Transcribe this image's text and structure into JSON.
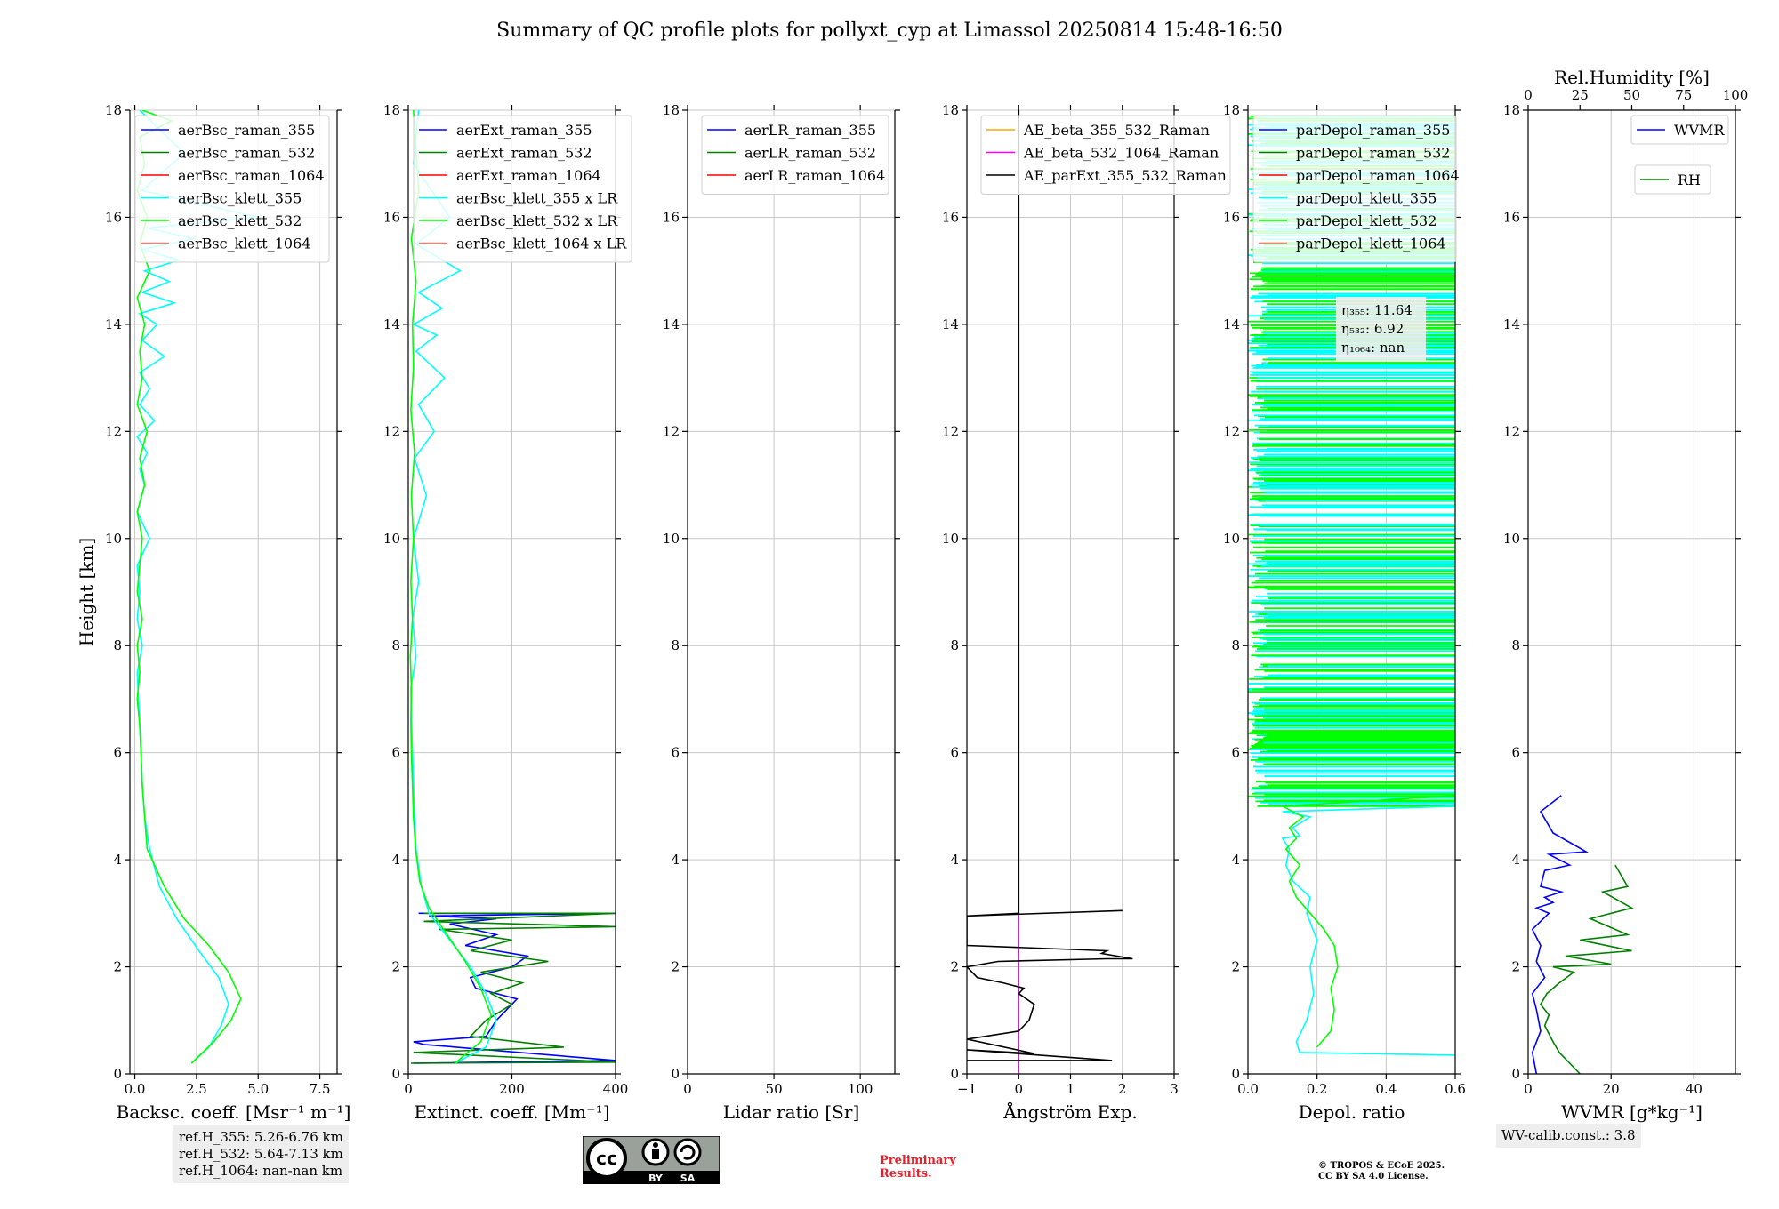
{
  "figure": {
    "title": "Summary of QC profile plots for pollyxt_cyp at Limassol 20250814 15:48-16:50",
    "ylabel": "Height [km]",
    "ref_heights": [
      "ref.H_355: 5.26-6.76 km",
      "ref.H_532: 5.64-7.13 km",
      "ref.H_1064: nan-nan km"
    ],
    "wv_calib": "WV-calib.const.: 3.8",
    "preliminary": "Preliminary\nResults.",
    "copyright": "© TROPOS & ECoE 2025.\nCC BY SA 4.0 License.",
    "license_badge": {
      "icon": "creative-commons-by-sa-icon",
      "by": "BY",
      "sa": "SA"
    }
  },
  "chart_data": [
    {
      "type": "line",
      "xlabel": "Backsc. coeff. [Msr⁻¹ m⁻¹]",
      "xlim": [
        -0.2,
        8.2
      ],
      "ylim": [
        0,
        18
      ],
      "xticks": [
        0,
        2.5,
        5,
        7.5
      ],
      "xtick_labels": [
        "0.0",
        "2.5",
        "5.0",
        "7.5"
      ],
      "yticks": [
        0,
        2,
        4,
        6,
        8,
        10,
        12,
        14,
        16,
        18
      ],
      "grid": true,
      "legend_position": "top-right",
      "series": [
        {
          "name": "aerBsc_raman_355",
          "color": "#0000ff",
          "x": [],
          "y": []
        },
        {
          "name": "aerBsc_raman_532",
          "color": "#008000",
          "x": [],
          "y": []
        },
        {
          "name": "aerBsc_raman_1064",
          "color": "#ff0000",
          "x": [],
          "y": []
        },
        {
          "name": "aerBsc_klett_355",
          "color": "#00ffff",
          "x": [
            2.3,
            3.0,
            3.5,
            3.8,
            3.4,
            2.6,
            1.7,
            1.0,
            0.6,
            0.4,
            0.3,
            0.25,
            0.2,
            0.15,
            0.1,
            0.3,
            0.1,
            0.2,
            0.1,
            0.6,
            0.1,
            0.4,
            0.2,
            0.5,
            0.1,
            0.8,
            0.2,
            0.6,
            0.2,
            1.2,
            0.3,
            0.9,
            0.2,
            1.6,
            0.3,
            1.4,
            0.4,
            1.8,
            0.3,
            2.4,
            0.5,
            5.0,
            0.3,
            2.0,
            0.2
          ],
          "y": [
            0.2,
            0.5,
            0.9,
            1.3,
            1.8,
            2.3,
            2.9,
            3.5,
            4.2,
            4.8,
            5.4,
            6.0,
            6.5,
            7.0,
            7.5,
            8.0,
            8.5,
            9.0,
            9.5,
            10.0,
            10.5,
            11.0,
            11.3,
            11.6,
            11.9,
            12.2,
            12.5,
            12.8,
            13.1,
            13.4,
            13.7,
            14.0,
            14.2,
            14.4,
            14.6,
            14.8,
            15.0,
            15.2,
            15.4,
            15.6,
            15.8,
            16.0,
            16.5,
            17.2,
            18.0
          ]
        },
        {
          "name": "aerBsc_klett_532",
          "color": "#00ff00",
          "x": [
            2.3,
            3.2,
            3.9,
            4.3,
            3.8,
            3.0,
            2.0,
            1.2,
            0.5,
            0.4,
            0.3,
            0.25,
            0.2,
            0.1,
            0.2,
            0.1,
            0.3,
            0.1,
            0.2,
            0.3,
            0.1,
            0.4,
            0.2,
            0.5,
            0.1,
            0.3,
            0.2,
            0.4,
            0.1,
            0.6,
            0.2,
            0.5,
            0.1,
            0.4,
            0.2,
            1.5,
            0.3
          ],
          "y": [
            0.2,
            0.6,
            1.0,
            1.4,
            1.9,
            2.4,
            2.9,
            3.5,
            4.2,
            4.8,
            5.4,
            6.0,
            6.5,
            7.0,
            7.5,
            8.0,
            8.5,
            9.0,
            9.5,
            10.0,
            10.5,
            11.0,
            11.5,
            12.0,
            12.5,
            13.0,
            13.5,
            14.0,
            14.5,
            15.0,
            15.5,
            16.0,
            16.5,
            17.0,
            17.5,
            17.8,
            18.0
          ]
        },
        {
          "name": "aerBsc_klett_1064",
          "color": "#fa8072",
          "x": [],
          "y": []
        }
      ]
    },
    {
      "type": "line",
      "xlabel": "Extinct. coeff. [Mm⁻¹]",
      "xlim": [
        0,
        400
      ],
      "ylim": [
        0,
        18
      ],
      "xticks": [
        0,
        200,
        400
      ],
      "xtick_labels": [
        "0",
        "200",
        "400"
      ],
      "yticks": [
        0,
        2,
        4,
        6,
        8,
        10,
        12,
        14,
        16,
        18
      ],
      "grid": true,
      "legend_position": "top-right",
      "hidden_legend_text": [
        "0",
        "400",
        "1064 x LR"
      ],
      "series": [
        {
          "name": "aerExt_raman_355",
          "color": "#0000ff",
          "x": [
            10,
            400,
            30,
            10,
            150,
            170,
            190,
            210,
            130,
            120,
            200,
            230,
            110,
            170,
            80,
            170,
            40,
            400,
            20
          ],
          "y": [
            0.2,
            0.25,
            0.55,
            0.6,
            0.7,
            1.0,
            1.2,
            1.4,
            1.6,
            1.8,
            2.0,
            2.2,
            2.4,
            2.6,
            2.8,
            2.9,
            2.95,
            3.0,
            3.0
          ]
        },
        {
          "name": "aerExt_raman_532",
          "color": "#008000",
          "x": [
            5,
            400,
            10,
            300,
            120,
            150,
            200,
            160,
            220,
            140,
            270,
            120,
            200,
            60,
            400,
            30,
            400,
            30
          ],
          "y": [
            0.2,
            0.22,
            0.4,
            0.5,
            0.7,
            1.0,
            1.3,
            1.5,
            1.7,
            1.9,
            2.1,
            2.3,
            2.5,
            2.7,
            2.75,
            2.85,
            3.0,
            3.0
          ]
        },
        {
          "name": "aerExt_raman_1064",
          "color": "#ff0000",
          "x": [],
          "y": []
        },
        {
          "name": "aerBsc_klett_355 x LR",
          "color": "#00ffff",
          "x": [
            90,
            150,
            170,
            150,
            120,
            80,
            40,
            25,
            15,
            12,
            10,
            8,
            6,
            5,
            15,
            8,
            20,
            10,
            35,
            12,
            50,
            20,
            70,
            15,
            55,
            10,
            65,
            20,
            100,
            15,
            80,
            10,
            20
          ],
          "y": [
            0.2,
            0.5,
            1.0,
            1.5,
            2.0,
            2.5,
            3.0,
            3.5,
            4.2,
            4.8,
            5.4,
            6.0,
            6.6,
            7.2,
            7.8,
            8.5,
            9.2,
            10.0,
            10.8,
            11.5,
            12.0,
            12.5,
            13.0,
            13.5,
            13.8,
            14.0,
            14.3,
            14.6,
            15.0,
            15.5,
            16.0,
            17.0,
            18.0
          ]
        },
        {
          "name": "aerBsc_klett_532 x LR",
          "color": "#00ff00",
          "x": [
            90,
            140,
            160,
            140,
            110,
            75,
            40,
            22,
            14,
            10,
            8,
            6,
            5,
            6,
            4,
            8,
            5,
            10,
            6,
            12,
            5,
            10,
            8,
            15,
            6,
            20,
            10
          ],
          "y": [
            0.2,
            0.6,
            1.1,
            1.6,
            2.1,
            2.6,
            3.1,
            3.6,
            4.2,
            4.8,
            5.4,
            6.0,
            6.6,
            7.2,
            7.8,
            8.5,
            9.2,
            10.0,
            10.8,
            11.6,
            12.4,
            13.2,
            14.0,
            14.8,
            15.6,
            16.5,
            18.0
          ]
        },
        {
          "name": "aerBsc_klett_1064 x LR",
          "color": "#fa8072",
          "x": [],
          "y": []
        }
      ]
    },
    {
      "type": "line",
      "xlabel": "Lidar ratio [Sr]",
      "xlim": [
        0,
        120
      ],
      "ylim": [
        0,
        18
      ],
      "xticks": [
        0,
        50,
        100
      ],
      "xtick_labels": [
        "0",
        "50",
        "100"
      ],
      "yticks": [
        0,
        2,
        4,
        6,
        8,
        10,
        12,
        14,
        16,
        18
      ],
      "grid": true,
      "legend_position": "top-right",
      "series": [
        {
          "name": "aerLR_raman_355",
          "color": "#0000ff",
          "x": [],
          "y": []
        },
        {
          "name": "aerLR_raman_532",
          "color": "#008000",
          "x": [],
          "y": []
        },
        {
          "name": "aerLR_raman_1064",
          "color": "#ff0000",
          "x": [],
          "y": []
        }
      ]
    },
    {
      "type": "line",
      "xlabel": "Ångström Exp.",
      "xlim": [
        -1,
        3
      ],
      "ylim": [
        0,
        18
      ],
      "xticks": [
        -1,
        0,
        1,
        2,
        3
      ],
      "xtick_labels": [
        "−1",
        "0",
        "1",
        "2",
        "3"
      ],
      "yticks": [
        0,
        2,
        4,
        6,
        8,
        10,
        12,
        14,
        16,
        18
      ],
      "grid": true,
      "legend_position": "top-right",
      "series": [
        {
          "name": "AE_beta_355_532_Raman",
          "color": "#ffa500",
          "x": [],
          "y": []
        },
        {
          "name": "AE_beta_532_1064_Raman",
          "color": "#ff00ff",
          "x": [
            0,
            0
          ],
          "y": [
            0,
            3.0
          ]
        },
        {
          "name": "AE_parExt_355_532_Raman",
          "color": "#000000",
          "x": [
            -1,
            1.8,
            -1,
            0.3,
            -1,
            0.0,
            0.2,
            0.3,
            0.0,
            0.1,
            -0.3,
            -0.8,
            -1,
            -0.4,
            1.7,
            2.2,
            1.6,
            1.7,
            -1,
            -1,
            2.0,
            -1,
            0,
            0
          ],
          "y": [
            0.25,
            0.25,
            0.45,
            0.38,
            0.65,
            0.8,
            1.0,
            1.3,
            1.5,
            1.6,
            1.7,
            1.8,
            2.0,
            2.1,
            2.15,
            2.15,
            2.25,
            2.3,
            2.4,
            2.95,
            3.05,
            2.95,
            3.0,
            18.0
          ]
        }
      ]
    },
    {
      "type": "line",
      "xlabel": "Depol. ratio",
      "xlim": [
        0,
        0.6
      ],
      "ylim": [
        0,
        18
      ],
      "xticks": [
        0,
        0.2,
        0.4,
        0.6
      ],
      "xtick_labels": [
        "0.0",
        "0.2",
        "0.4",
        "0.6"
      ],
      "yticks": [
        0,
        2,
        4,
        6,
        8,
        10,
        12,
        14,
        16,
        18
      ],
      "grid": true,
      "legend_position": "top-right",
      "annotation": [
        "η₃₅₅: 11.64",
        "η₅₃₂: 6.92",
        "η₁₀₆₄: nan"
      ],
      "series": [
        {
          "name": "parDepol_raman_355",
          "color": "#0000ff",
          "x": [],
          "y": []
        },
        {
          "name": "parDepol_raman_532",
          "color": "#008000",
          "x": [],
          "y": []
        },
        {
          "name": "parDepol_raman_1064",
          "color": "#ff0000",
          "x": [],
          "y": []
        },
        {
          "name": "parDepol_klett_355",
          "color": "#00ffff",
          "x": [
            0.6,
            0.15,
            0.14,
            0.17,
            0.19,
            0.18,
            0.2,
            0.17,
            0.18,
            0.13,
            0.11,
            0.12,
            0.1,
            0.15,
            0.13,
            0.18,
            0.1,
            0.6
          ],
          "y": [
            0.35,
            0.4,
            0.6,
            1.0,
            1.5,
            2.0,
            2.5,
            3.0,
            3.3,
            3.6,
            3.9,
            4.2,
            4.4,
            4.45,
            4.6,
            4.8,
            4.9,
            5.0
          ]
        },
        {
          "name": "parDepol_klett_532",
          "color": "#00ff00",
          "x": [
            0.2,
            0.24,
            0.25,
            0.24,
            0.26,
            0.25,
            0.22,
            0.18,
            0.14,
            0.12,
            0.15,
            0.11,
            0.14,
            0.12,
            0.16,
            0.1,
            0.6
          ],
          "y": [
            0.5,
            0.8,
            1.2,
            1.6,
            2.0,
            2.4,
            2.7,
            3.0,
            3.3,
            3.6,
            3.9,
            4.2,
            4.4,
            4.6,
            4.8,
            5.0,
            5.2
          ]
        },
        {
          "name": "parDepol_klett_1064",
          "color": "#fa8072",
          "x": [],
          "y": []
        }
      ],
      "noise_band": {
        "ymin": 5.0,
        "ymax": 18.0,
        "xmax": 0.6,
        "note": "dense noisy horizontal lines of parDepol_klett_355 and parDepol_klett_532 above 5 km"
      }
    },
    {
      "type": "line",
      "xlabel": "WVMR [g*kg⁻¹]",
      "x2label": "Rel.Humidity [%]",
      "xlim": [
        0,
        50
      ],
      "x2lim": [
        0,
        100
      ],
      "ylim": [
        0,
        18
      ],
      "xticks": [
        0,
        20,
        40
      ],
      "xtick_labels": [
        "0",
        "20",
        "40"
      ],
      "x2ticks": [
        0,
        25,
        50,
        75,
        100
      ],
      "x2tick_labels": [
        "0",
        "25",
        "50",
        "75",
        "100"
      ],
      "yticks": [
        0,
        2,
        4,
        6,
        8,
        10,
        12,
        14,
        16,
        18
      ],
      "grid": true,
      "legend_position": "top-right",
      "series": [
        {
          "name": "WVMR",
          "color": "#0000ff",
          "x": [
            2,
            1,
            3,
            2,
            1,
            4,
            2,
            3,
            1,
            5,
            2,
            6,
            4,
            8,
            3,
            4,
            10,
            5,
            14,
            6,
            3,
            8
          ],
          "y": [
            0.0,
            0.4,
            0.8,
            1.2,
            1.5,
            1.8,
            2.1,
            2.4,
            2.7,
            3.0,
            3.1,
            3.2,
            3.3,
            3.4,
            3.5,
            3.8,
            3.9,
            4.1,
            4.15,
            4.5,
            4.9,
            5.2
          ]
        },
        {
          "name": "RH",
          "color": "#008000",
          "x": [
            25,
            15,
            12,
            8,
            10,
            6,
            9,
            15,
            22,
            12,
            40,
            18,
            50,
            25,
            48,
            30,
            50,
            36,
            48,
            42
          ],
          "y": [
            0.0,
            0.4,
            0.6,
            0.9,
            1.1,
            1.3,
            1.5,
            1.7,
            1.9,
            2.0,
            2.05,
            2.2,
            2.3,
            2.5,
            2.6,
            2.9,
            3.1,
            3.4,
            3.5,
            3.9
          ]
        }
      ]
    }
  ]
}
